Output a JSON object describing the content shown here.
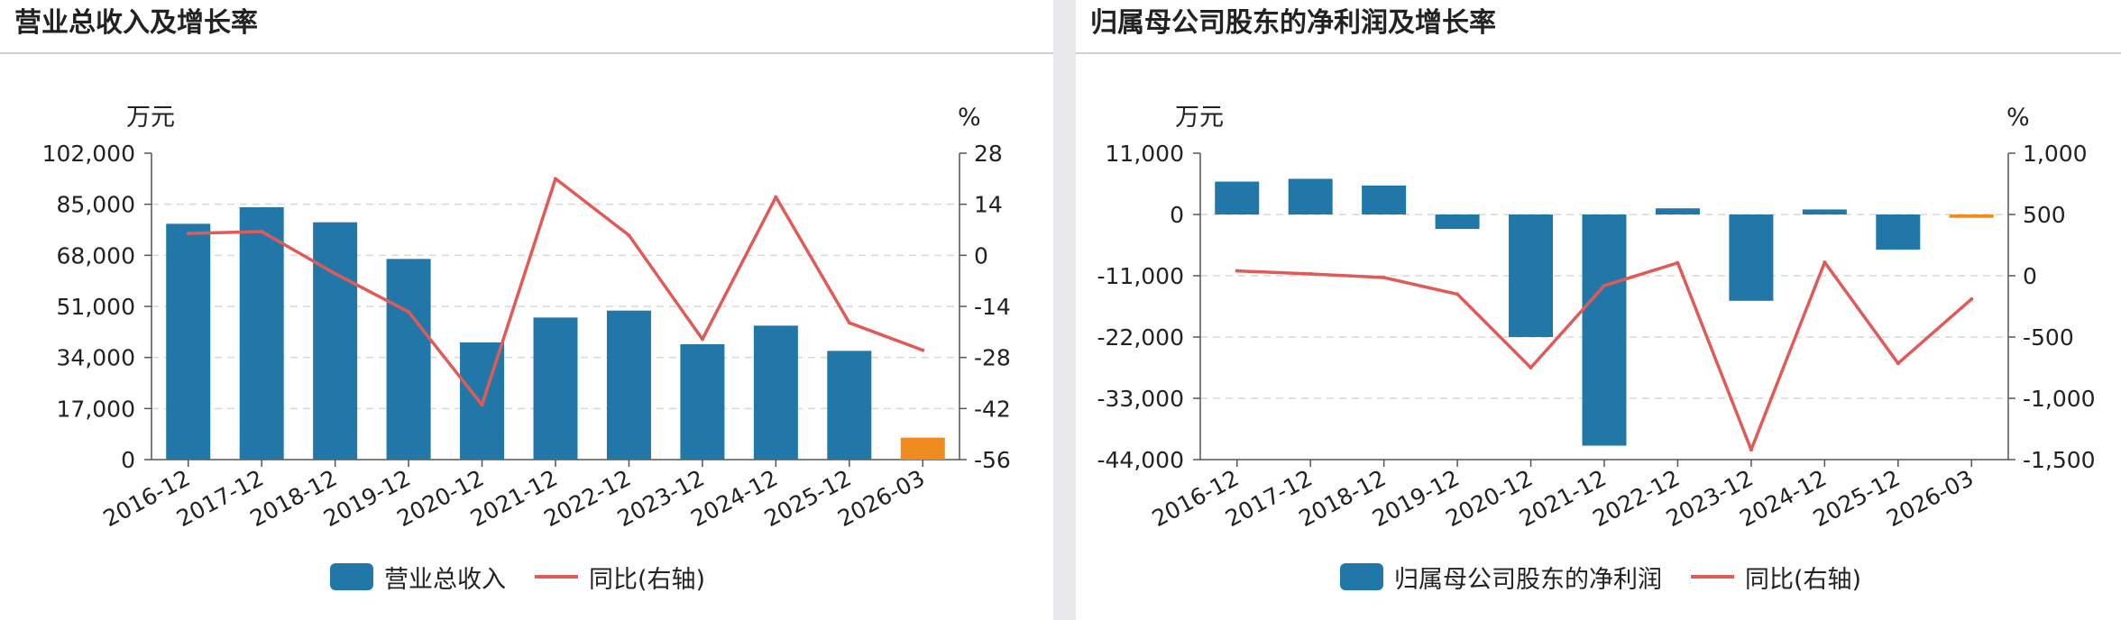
{
  "panels": [
    {
      "title": "营业总收入及增长率",
      "legend": {
        "bar_label": "营业总收入",
        "line_label": "同比(右轴)"
      },
      "chart_data": {
        "type": "bar",
        "categories": [
          "2016-12",
          "2017-12",
          "2018-12",
          "2019-12",
          "2020-12",
          "2021-12",
          "2022-12",
          "2023-12",
          "2024-12",
          "2025-12",
          "2026-03"
        ],
        "series": [
          {
            "name": "营业总收入",
            "axis": "left",
            "type": "bar",
            "values": [
              78500,
              84000,
              79000,
              66800,
              39000,
              47300,
              49600,
              38400,
              44600,
              36200,
              7300
            ]
          },
          {
            "name": "同比(右轴)",
            "axis": "right",
            "type": "line",
            "values": [
              6,
              6.5,
              -5,
              -15.5,
              -41,
              21,
              5.5,
              -23,
              16,
              -18.5,
              -26
            ]
          }
        ],
        "left_axis": {
          "unit": "万元",
          "ticks": [
            "102,000",
            "85,000",
            "68,000",
            "51,000",
            "34,000",
            "17,000",
            "0"
          ],
          "ylim": [
            0,
            102000
          ]
        },
        "right_axis": {
          "unit": "%",
          "ticks": [
            "28",
            "14",
            "0",
            "-14",
            "-28",
            "-42",
            "-56"
          ],
          "ylim": [
            -56,
            28
          ]
        },
        "highlight_last": true,
        "grid": true
      }
    },
    {
      "title": "归属母公司股东的净利润及增长率",
      "legend": {
        "bar_label": "归属母公司股东的净利润",
        "line_label": "同比(右轴)"
      },
      "chart_data": {
        "type": "bar",
        "categories": [
          "2016-12",
          "2017-12",
          "2018-12",
          "2019-12",
          "2020-12",
          "2021-12",
          "2022-12",
          "2023-12",
          "2024-12",
          "2025-12",
          "2026-03"
        ],
        "series": [
          {
            "name": "归属母公司股东的净利润",
            "axis": "left",
            "type": "bar",
            "values": [
              5900,
              6400,
              5200,
              -2600,
              -22000,
              -41500,
              1100,
              -15500,
              900,
              -6300,
              -600
            ]
          },
          {
            "name": "同比(右轴)",
            "axis": "right",
            "type": "line",
            "values": [
              40,
              15,
              -15,
              -150,
              -750,
              -80,
              105,
              -1420,
              110,
              -715,
              -190
            ]
          }
        ],
        "left_axis": {
          "unit": "万元",
          "ticks": [
            "11,000",
            "0",
            "-11,000",
            "-22,000",
            "-33,000",
            "-44,000"
          ],
          "ylim": [
            -44000,
            11000
          ]
        },
        "right_axis": {
          "unit": "%",
          "ticks": [
            "1,000",
            "500",
            "0",
            "-500",
            "-1,000",
            "-1,500"
          ],
          "ylim": [
            -1500,
            1000
          ]
        },
        "highlight_last": true,
        "grid": true
      }
    }
  ],
  "colors": {
    "bar": "#2178a8",
    "bar_highlight": "#f08c1f",
    "line": "#e05b57",
    "grid": "#d9d9d9",
    "axis": "#555555",
    "text": "#222222"
  }
}
